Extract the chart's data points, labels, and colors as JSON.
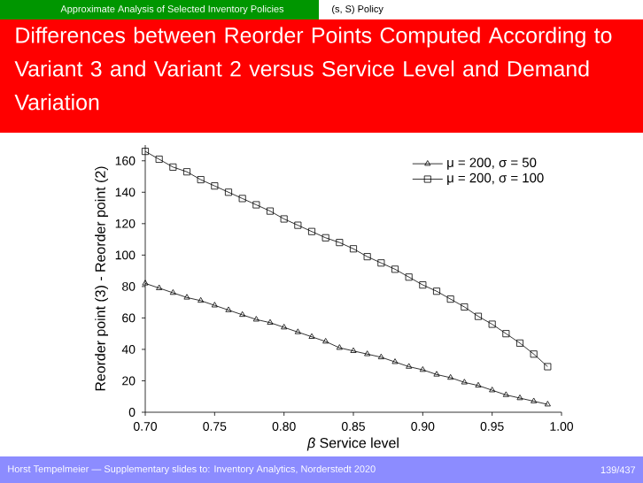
{
  "chart_data": {
    "type": "line",
    "title": "Differences between Reorder Points Computed According to Variant 3 and Variant 2 versus Service Level and Demand Variation",
    "xlabel": "*β* Service level",
    "ylabel": "Reorder point (3) - Reorder point (2)",
    "x": [
      0.7,
      0.71,
      0.72,
      0.73,
      0.74,
      0.75,
      0.76,
      0.77,
      0.78,
      0.79,
      0.8,
      0.81,
      0.82,
      0.83,
      0.84,
      0.85,
      0.86,
      0.87,
      0.88,
      0.89,
      0.9,
      0.91,
      0.92,
      0.93,
      0.94,
      0.95,
      0.96,
      0.97,
      0.98,
      0.99
    ],
    "series": [
      {
        "name": "μ = 200, σ = 50",
        "color": "#000000",
        "marker": "triangle",
        "values": [
          82,
          79,
          76,
          73,
          71,
          68,
          65,
          62,
          59,
          57,
          54,
          51,
          48,
          45,
          41,
          39,
          37,
          35,
          32,
          29,
          27,
          24,
          22,
          19,
          17,
          14,
          11,
          9,
          7,
          5
        ]
      },
      {
        "name": "μ = 200, σ = 100",
        "color": "#000000",
        "marker": "square",
        "values": [
          166,
          161,
          156,
          153,
          148,
          144,
          140,
          136,
          132,
          128,
          123,
          119,
          115,
          111,
          108,
          104,
          99,
          95,
          91,
          86,
          81,
          77,
          72,
          67,
          61,
          56,
          50,
          44,
          37,
          29
        ]
      }
    ],
    "xlim": [
      0.7,
      1.0
    ],
    "ylim": [
      0,
      170
    ],
    "xticks": [
      {
        "value": 0.7,
        "label": "0.70"
      },
      {
        "value": 0.75,
        "label": "0.75"
      },
      {
        "value": 0.8,
        "label": "0.80"
      },
      {
        "value": 0.85,
        "label": "0.85"
      },
      {
        "value": 0.9,
        "label": "0.90"
      },
      {
        "value": 0.95,
        "label": "0.95"
      },
      {
        "value": 1.0,
        "label": "1.00"
      }
    ],
    "yticks": [
      0,
      20,
      40,
      60,
      80,
      100,
      120,
      140,
      160
    ],
    "legend": "top right",
    "annotations": [
      "Approximate Analysis of Selected Inventory Policies",
      "(s, S) Policy",
      "Horst Tempelmeier — Supplementary slides to: Inventory Analytics, Norderstedt 2020",
      "139/437"
    ]
  }
}
